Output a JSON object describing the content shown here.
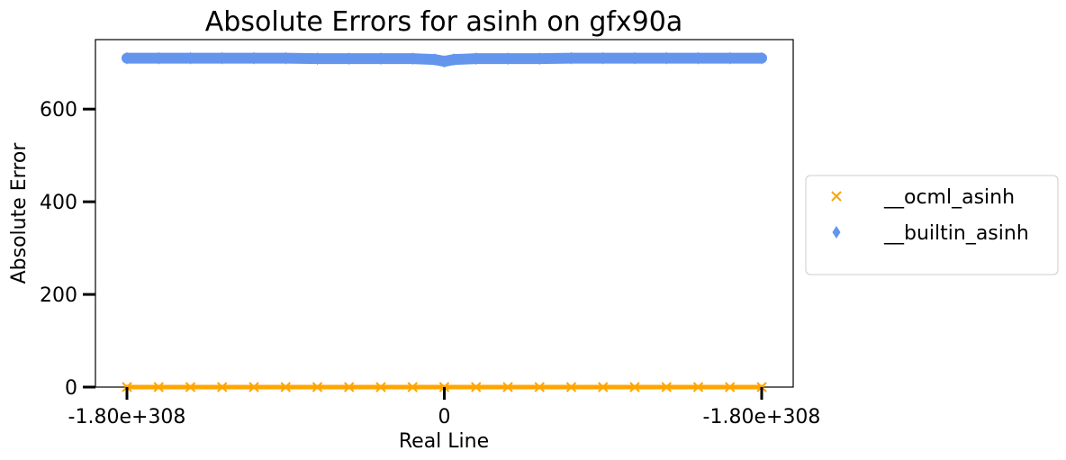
{
  "chart_data": {
    "type": "scatter",
    "title": "Absolute Errors for asinh on gfx90a",
    "xlabel": "Real Line",
    "ylabel": "Absolute Error",
    "xlim": [
      -1.0,
      1.0
    ],
    "ylim": [
      0,
      750
    ],
    "x_ticks": [
      {
        "value": -1.0,
        "label": "-1.80e+308"
      },
      {
        "value": 0.0,
        "label": "0"
      },
      {
        "value": 1.0,
        "label": "-1.80e+308"
      }
    ],
    "y_ticks": [
      {
        "value": 0,
        "label": "0"
      },
      {
        "value": 200,
        "label": "200"
      },
      {
        "value": 400,
        "label": "400"
      },
      {
        "value": 600,
        "label": "600"
      }
    ],
    "grid": false,
    "legend_position": "right, outside plot",
    "series": [
      {
        "name": "__ocml_asinh",
        "marker": "x",
        "color": "#FFA500",
        "x": [
          -1.0,
          -0.9,
          -0.8,
          -0.7,
          -0.6,
          -0.5,
          -0.4,
          -0.3,
          -0.2,
          -0.1,
          0.0,
          0.1,
          0.2,
          0.3,
          0.4,
          0.5,
          0.6,
          0.7,
          0.8,
          0.9,
          1.0
        ],
        "y": [
          0,
          0,
          0,
          0,
          0,
          0,
          0,
          0,
          0,
          0,
          0,
          0,
          0,
          0,
          0,
          0,
          0,
          0,
          0,
          0,
          0
        ]
      },
      {
        "name": "__builtin_asinh",
        "marker": "thin_diamond",
        "color": "#6495ED",
        "x": [
          -1.0,
          -0.9,
          -0.8,
          -0.7,
          -0.6,
          -0.5,
          -0.4,
          -0.3,
          -0.2,
          -0.1,
          -0.03,
          0.0,
          0.03,
          0.1,
          0.2,
          0.3,
          0.4,
          0.5,
          0.6,
          0.7,
          0.8,
          0.9,
          1.0
        ],
        "y": [
          710,
          710,
          710,
          710,
          710,
          710,
          709,
          709,
          709,
          709,
          707,
          703,
          707,
          709,
          709,
          709,
          710,
          710,
          710,
          710,
          710,
          710,
          710
        ]
      }
    ]
  }
}
